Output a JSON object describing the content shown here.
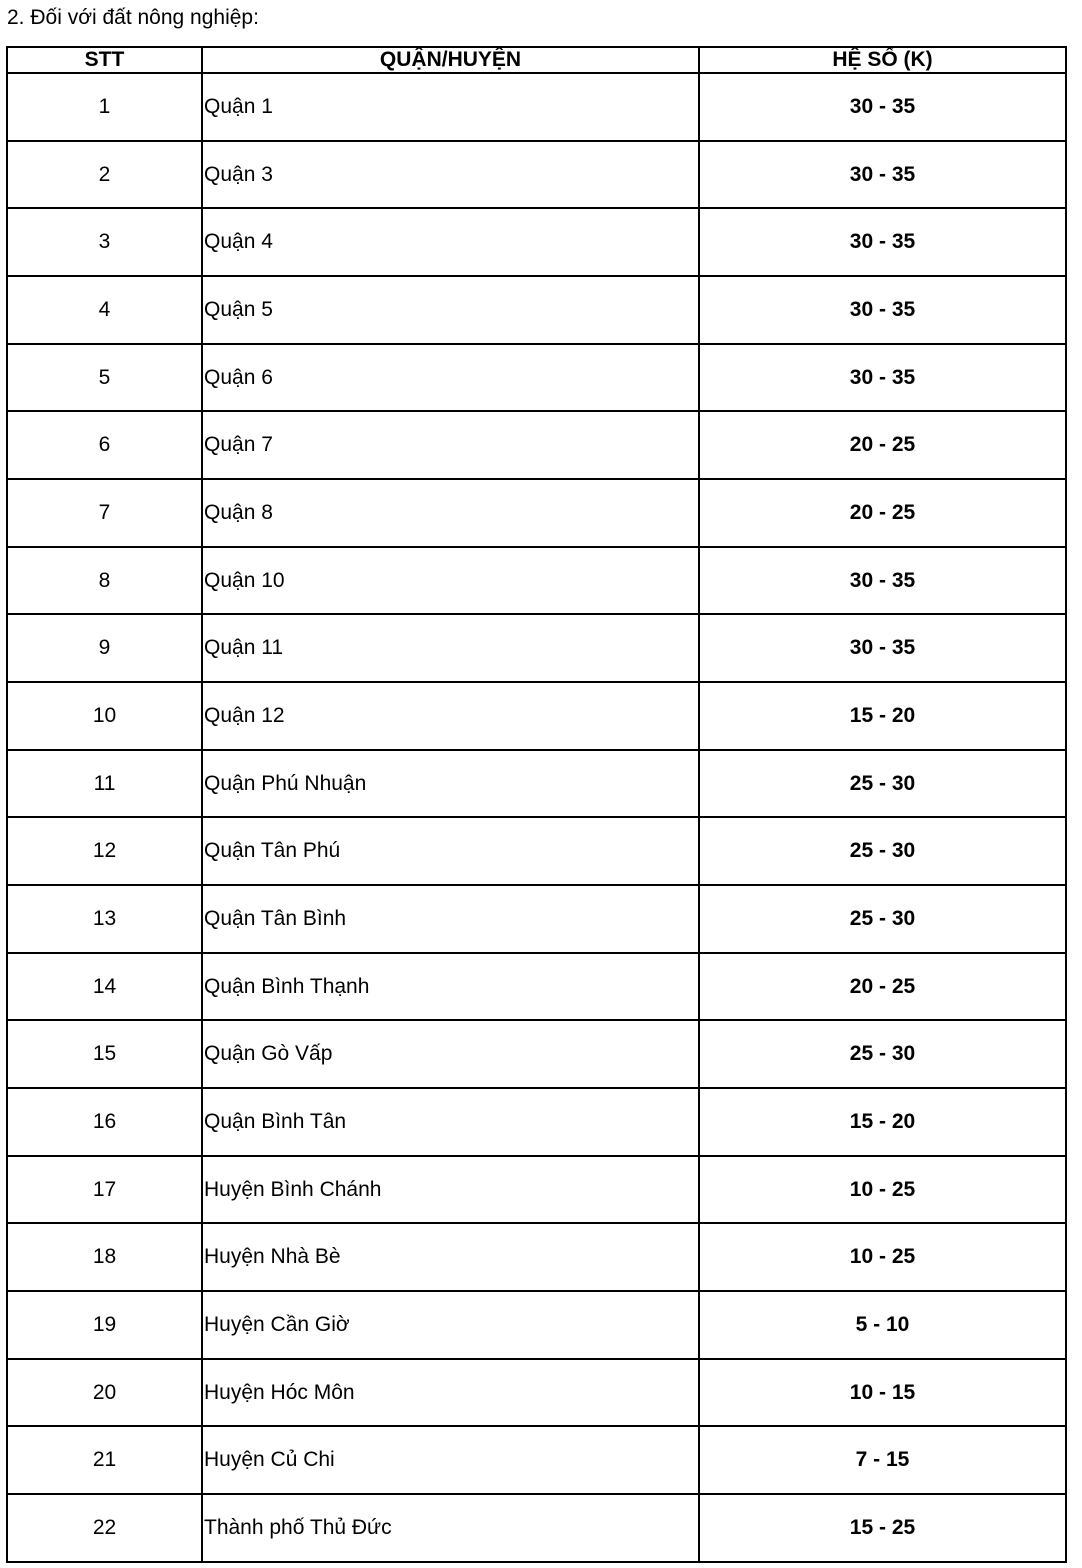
{
  "heading": "2. Đối với đất nông nghiệp:",
  "table": {
    "headers": [
      "STT",
      "QUẬN/HUYỆN",
      "HỆ SỐ (K)"
    ],
    "rows": [
      {
        "stt": "1",
        "name": "Quận 1",
        "k": "30 - 35"
      },
      {
        "stt": "2",
        "name": "Quận 3",
        "k": "30 - 35"
      },
      {
        "stt": "3",
        "name": "Quận 4",
        "k": "30 - 35"
      },
      {
        "stt": "4",
        "name": "Quận 5",
        "k": "30 - 35"
      },
      {
        "stt": "5",
        "name": "Quận 6",
        "k": "30 - 35"
      },
      {
        "stt": "6",
        "name": "Quận 7",
        "k": "20 - 25"
      },
      {
        "stt": "7",
        "name": "Quận 8",
        "k": "20 - 25"
      },
      {
        "stt": "8",
        "name": "Quận 10",
        "k": "30 - 35"
      },
      {
        "stt": "9",
        "name": "Quận 11",
        "k": "30 - 35"
      },
      {
        "stt": "10",
        "name": "Quận 12",
        "k": "15 - 20"
      },
      {
        "stt": "11",
        "name": "Quận Phú Nhuận",
        "k": "25 - 30"
      },
      {
        "stt": "12",
        "name": "Quận Tân Phú",
        "k": "25 - 30"
      },
      {
        "stt": "13",
        "name": "Quận Tân Bình",
        "k": "25 - 30"
      },
      {
        "stt": "14",
        "name": "Quận Bình Thạnh",
        "k": "20 - 25"
      },
      {
        "stt": "15",
        "name": "Quận Gò Vấp",
        "k": "25 - 30"
      },
      {
        "stt": "16",
        "name": "Quận Bình Tân",
        "k": "15 - 20"
      },
      {
        "stt": "17",
        "name": "Huyện Bình Chánh",
        "k": "10 - 25"
      },
      {
        "stt": "18",
        "name": "Huyện Nhà Bè",
        "k": "10 - 25"
      },
      {
        "stt": "19",
        "name": "Huyện Cần Giờ",
        "k": "5 - 10"
      },
      {
        "stt": "20",
        "name": "Huyện Hóc Môn",
        "k": "10 - 15"
      },
      {
        "stt": "21",
        "name": "Huyện Củ Chi",
        "k": "7 - 15"
      },
      {
        "stt": "22",
        "name": "Thành phố Thủ Đức",
        "k": "15 - 25"
      }
    ]
  }
}
